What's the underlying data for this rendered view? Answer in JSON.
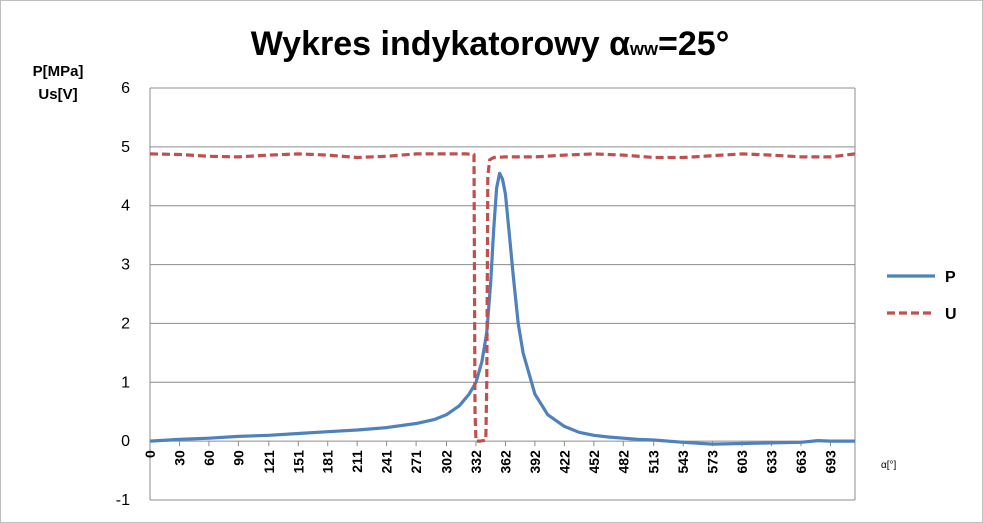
{
  "chart_data": {
    "type": "line",
    "title_main": "Wykres  indykatorowy α",
    "title_sub": "ww",
    "title_tail": "=25°",
    "ylabel_line1": "P[MPa]",
    "ylabel_line2": "Us[V]",
    "xlabel": "α[°]",
    "ylim": [
      -1,
      6
    ],
    "yticks": [
      -1,
      0,
      1,
      2,
      3,
      4,
      5,
      6
    ],
    "xlim": [
      0,
      718
    ],
    "xticks": [
      0,
      30,
      60,
      90,
      121,
      151,
      181,
      211,
      241,
      271,
      302,
      332,
      362,
      392,
      422,
      452,
      482,
      513,
      543,
      573,
      603,
      633,
      663,
      693
    ],
    "grid": true,
    "legend_position": "right",
    "series": [
      {
        "name": "P",
        "color": "#4f81bd",
        "style": "solid",
        "x": [
          0,
          30,
          60,
          90,
          121,
          151,
          181,
          211,
          241,
          271,
          290,
          302,
          315,
          325,
          332,
          338,
          343,
          347,
          350,
          353,
          356,
          359,
          362,
          366,
          370,
          375,
          380,
          392,
          405,
          422,
          437,
          452,
          467,
          482,
          497,
          513,
          543,
          573,
          603,
          633,
          663,
          680,
          693,
          718
        ],
        "y": [
          0.0,
          0.03,
          0.05,
          0.08,
          0.1,
          0.13,
          0.16,
          0.19,
          0.23,
          0.3,
          0.37,
          0.45,
          0.6,
          0.8,
          1.0,
          1.35,
          1.85,
          2.7,
          3.6,
          4.3,
          4.55,
          4.45,
          4.2,
          3.5,
          2.8,
          2.0,
          1.5,
          0.8,
          0.45,
          0.25,
          0.15,
          0.1,
          0.07,
          0.05,
          0.03,
          0.02,
          -0.02,
          -0.05,
          -0.04,
          -0.03,
          -0.02,
          0.01,
          0.0,
          0.0
        ]
      },
      {
        "name": "U",
        "color": "#c0504d",
        "style": "dashed",
        "x": [
          0,
          30,
          60,
          90,
          121,
          151,
          181,
          211,
          241,
          271,
          302,
          322,
          330,
          331,
          332,
          336,
          340,
          342,
          343,
          344,
          346,
          350,
          362,
          392,
          422,
          452,
          482,
          513,
          543,
          573,
          603,
          633,
          663,
          693,
          718
        ],
        "y": [
          4.88,
          4.87,
          4.84,
          4.83,
          4.86,
          4.88,
          4.86,
          4.82,
          4.84,
          4.88,
          4.88,
          4.88,
          4.87,
          0.5,
          0.0,
          0.0,
          0.01,
          0.02,
          1.0,
          4.5,
          4.78,
          4.82,
          4.83,
          4.83,
          4.86,
          4.88,
          4.86,
          4.82,
          4.82,
          4.85,
          4.88,
          4.86,
          4.83,
          4.83,
          4.88
        ]
      }
    ]
  }
}
